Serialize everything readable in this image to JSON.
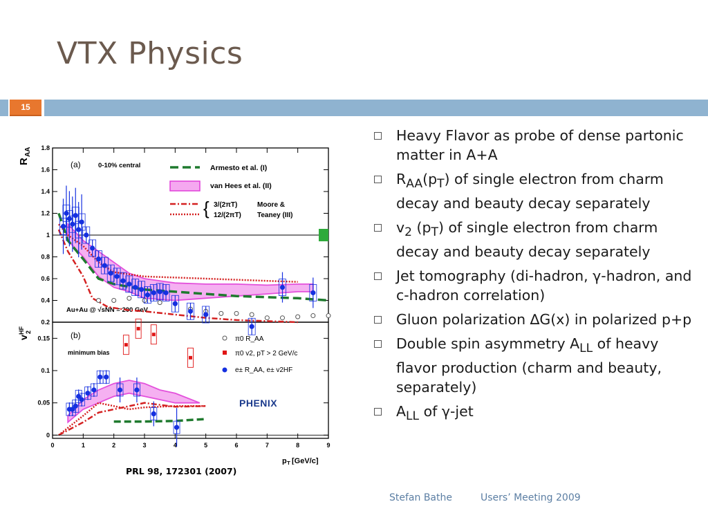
{
  "slide": {
    "title": "VTX Physics",
    "number": "15",
    "caption": "PRL 98, 172301 (2007)",
    "footer_author": "Stefan Bathe",
    "footer_event": "Users’ Meeting 2009",
    "colors": {
      "title": "#6b5a4e",
      "band": "#8fb3d0",
      "number_box": "#e8772e",
      "footer": "#5b7ea3"
    }
  },
  "bullets": [
    {
      "html": "Heavy Flavor as probe of dense partonic matter in A+A"
    },
    {
      "html": "R<sub>AA</sub>(p<sub>T</sub>) of single electron from charm decay and beauty decay separately"
    },
    {
      "html": "v<sub>2</sub> (p<sub>T</sub>) of single electron from charm decay and beauty decay separately"
    },
    {
      "html": "Jet tomography (di-hadron, γ-hadron, and c-hadron correlation)"
    },
    {
      "html": "Gluon polarization ∆G(x) in polarized p+p"
    },
    {
      "html": "Double spin asymmetry A<sub>LL</sub> of heavy flavor production (charm and beauty, separately)"
    },
    {
      "html": "A<sub>LL</sub> of γ-jet"
    }
  ],
  "chart_data": [
    {
      "type": "scatter",
      "panel": "(a)",
      "ylabel": "R_AA",
      "ylim": [
        0.2,
        1.8
      ],
      "xlim": [
        0,
        9
      ],
      "yticks": [
        "0.2",
        "0.4",
        "0.6",
        "0.8",
        "1",
        "1.2",
        "1.4",
        "1.6",
        "1.8"
      ],
      "annotations": [
        "(a)",
        "0-10% central",
        "Au+Au @ √sNN = 200 GeV"
      ],
      "legend": [
        "Armesto et al. (I)",
        "van Hees et al. (II)",
        "3/(2πT)",
        "12/(2πT)",
        "Moore &",
        "Teaney (III)"
      ],
      "series": [
        {
          "name": "e± R_AA",
          "x": [
            0.35,
            0.45,
            0.55,
            0.65,
            0.75,
            0.85,
            0.95,
            1.1,
            1.3,
            1.5,
            1.7,
            1.9,
            2.1,
            2.3,
            2.5,
            2.7,
            2.9,
            3.1,
            3.3,
            3.5,
            3.7,
            4.0,
            4.5,
            5.0,
            6.5,
            7.5,
            8.5
          ],
          "y": [
            1.08,
            1.2,
            1.15,
            1.1,
            1.18,
            1.05,
            1.12,
            1.0,
            0.88,
            0.78,
            0.72,
            0.65,
            0.62,
            0.58,
            0.55,
            0.52,
            0.5,
            0.45,
            0.47,
            0.48,
            0.47,
            0.37,
            0.3,
            0.27,
            0.16,
            0.52,
            0.47
          ]
        },
        {
          "name": "π0 R_AA",
          "x": [
            1.5,
            2.0,
            2.5,
            3.0,
            3.5,
            4.0,
            4.5,
            5.0,
            5.5,
            6.0,
            6.5,
            7.0,
            7.5,
            8.0,
            8.5,
            9.0
          ],
          "y": [
            0.4,
            0.4,
            0.42,
            0.4,
            0.38,
            0.37,
            0.32,
            0.3,
            0.28,
            0.28,
            0.27,
            0.24,
            0.24,
            0.25,
            0.26,
            0.26
          ]
        },
        {
          "name": "Armesto et al. (I)",
          "x": [
            0.2,
            0.5,
            1.0,
            1.5,
            2.0,
            3.0,
            4.0,
            5.0,
            6.0,
            7.0,
            8.0,
            9.0
          ],
          "y": [
            1.2,
            0.95,
            0.78,
            0.6,
            0.55,
            0.5,
            0.48,
            0.46,
            0.44,
            0.43,
            0.42,
            0.4
          ]
        },
        {
          "name": "3/(2πT)",
          "x": [
            0.2,
            0.5,
            1.0,
            1.3,
            1.8,
            2.5,
            3.0,
            4.0,
            5.0,
            6.0,
            7.0,
            8.0
          ],
          "y": [
            1.05,
            0.85,
            0.62,
            0.42,
            0.34,
            0.31,
            0.3,
            0.27,
            0.24,
            0.22,
            0.21,
            0.2
          ]
        },
        {
          "name": "12/(2πT)",
          "x": [
            0.2,
            0.5,
            1.0,
            1.5,
            2.0,
            3.0,
            4.0,
            5.0,
            6.0,
            7.0,
            8.0
          ],
          "y": [
            1.1,
            1.0,
            0.9,
            0.75,
            0.66,
            0.62,
            0.61,
            0.6,
            0.59,
            0.58,
            0.57
          ]
        },
        {
          "name": "van Hees et al. (II)",
          "x": [
            0.5,
            1.0,
            1.5,
            2.0,
            2.5,
            3.0,
            4.0,
            5.0,
            6.0,
            7.0,
            8.0,
            8.5
          ],
          "y_low": [
            0.95,
            0.8,
            0.62,
            0.52,
            0.48,
            0.42,
            0.4,
            0.42,
            0.44,
            0.46,
            0.48,
            0.48
          ],
          "y_high": [
            1.1,
            0.95,
            0.85,
            0.75,
            0.65,
            0.6,
            0.56,
            0.55,
            0.55,
            0.54,
            0.55,
            0.55
          ]
        }
      ]
    },
    {
      "type": "scatter",
      "panel": "(b)",
      "ylabel": "v2^HF",
      "xlabel": "pT [GeV/c]",
      "xlim": [
        0,
        9
      ],
      "ylim": [
        -0.005,
        0.175
      ],
      "xticks": [
        "0",
        "1",
        "2",
        "3",
        "4",
        "5",
        "6",
        "7",
        "8",
        "9"
      ],
      "yticks": [
        "0",
        "0.05",
        "0.1",
        "0.15"
      ],
      "annotations": [
        "(b)",
        "minimum bias",
        "PHENIX"
      ],
      "legend": [
        "π0 R_AA",
        "π0 v2, pT > 2 GeV/c",
        "e± R_AA, e± v2HF"
      ],
      "series": [
        {
          "name": "e± v2HF",
          "x": [
            0.55,
            0.65,
            0.75,
            0.85,
            0.95,
            1.15,
            1.35,
            1.55,
            1.75,
            2.2,
            2.75,
            3.3,
            4.05
          ],
          "y": [
            0.04,
            0.04,
            0.045,
            0.06,
            0.055,
            0.065,
            0.07,
            0.09,
            0.09,
            0.07,
            0.07,
            0.033,
            0.012
          ]
        },
        {
          "name": "π0 v2, pT > 2 GeV/c",
          "x": [
            2.4,
            2.8,
            3.3,
            4.5
          ],
          "y": [
            0.14,
            0.165,
            0.156,
            0.12
          ]
        },
        {
          "name": "Armesto et al. (I)",
          "x": [
            2.0,
            3.0,
            4.0,
            5.0
          ],
          "y": [
            0.021,
            0.021,
            0.022,
            0.025
          ]
        },
        {
          "name": "3/(2πT)",
          "x": [
            0.2,
            1.0,
            1.5,
            2.0,
            3.0,
            4.0,
            5.0
          ],
          "y": [
            0.0,
            0.02,
            0.035,
            0.04,
            0.05,
            0.044,
            0.045
          ]
        },
        {
          "name": "12/(2πT)",
          "x": [
            0.2,
            1.0,
            1.5,
            2.0,
            2.5,
            3.0,
            4.0,
            5.0
          ],
          "y": [
            0.0,
            0.03,
            0.05,
            0.045,
            0.04,
            0.043,
            0.045,
            0.045
          ]
        },
        {
          "name": "van Hees et al. (II)",
          "x": [
            0.5,
            1.0,
            1.5,
            2.0,
            2.5,
            3.0,
            3.5,
            4.0,
            4.8
          ],
          "y_low": [
            0.02,
            0.04,
            0.05,
            0.06,
            0.065,
            0.06,
            0.055,
            0.05,
            0.05
          ],
          "y_high": [
            0.03,
            0.055,
            0.07,
            0.08,
            0.085,
            0.08,
            0.07,
            0.065,
            0.05
          ]
        }
      ]
    }
  ]
}
